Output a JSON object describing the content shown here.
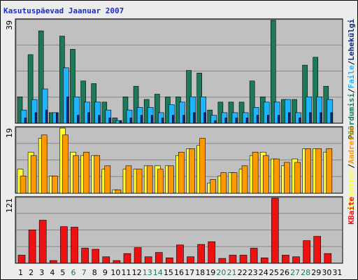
{
  "title": "Kasutuspäevad Jaanuar 2007",
  "colors": {
    "hits": "#1b7a5a",
    "files": "#1eb4ff",
    "pages": "#0b2a7a",
    "visits": "#ffff33",
    "sites": "#ff9900",
    "kbytes": "#ee1111",
    "weekend": "#1b7a5a",
    "weekday": "#000000",
    "plot_bg": "#c0c0c0"
  },
  "chart_data": [
    {
      "type": "bar",
      "ylabel_max": "39",
      "ylim": [
        0,
        39
      ],
      "legend": [
        {
          "key": "hits",
          "label": "Pöördumisi"
        },
        {
          "key": "sep1",
          "label": "/"
        },
        {
          "key": "files",
          "label": "Faile"
        },
        {
          "key": "sep2",
          "label": "/"
        },
        {
          "key": "pages",
          "label": "Lehekülgi"
        }
      ],
      "series": [
        {
          "name": "Pöördumisi",
          "values": [
            10,
            26,
            35,
            4,
            33,
            28,
            16,
            15,
            8,
            2,
            10,
            14,
            9,
            11,
            10,
            10,
            20,
            19,
            5,
            8,
            8,
            8,
            16,
            10,
            39,
            9,
            9,
            22,
            25,
            14,
            0
          ]
        },
        {
          "name": "Faile",
          "values": [
            5,
            9,
            13,
            4,
            21,
            10,
            8,
            8,
            5,
            1,
            5,
            6,
            6,
            4,
            7,
            8,
            10,
            10,
            3,
            4,
            4,
            4,
            6,
            8,
            8,
            9,
            4,
            10,
            10,
            9,
            0
          ]
        },
        {
          "name": "Lehekülgi",
          "values": [
            2,
            4,
            5,
            4,
            10,
            3,
            4,
            3,
            2,
            1,
            2,
            3,
            3,
            2,
            3,
            3,
            4,
            4,
            1,
            2,
            2,
            2,
            3,
            3,
            3,
            4,
            2,
            4,
            4,
            4,
            0
          ]
        }
      ]
    },
    {
      "type": "bar",
      "ylabel_max": "19",
      "ylim": [
        0,
        19
      ],
      "legend": [
        {
          "key": "visits",
          "label": "Külastusi"
        },
        {
          "key": "sep3",
          "label": "/"
        },
        {
          "key": "sites",
          "label": "Aadresse"
        }
      ],
      "series": [
        {
          "name": "Külastusi",
          "values": [
            7,
            12,
            16,
            5,
            19,
            12,
            11,
            11,
            7,
            1,
            7,
            7,
            8,
            8,
            8,
            11,
            13,
            14,
            3,
            5,
            6,
            7,
            11,
            12,
            10,
            8,
            10,
            13,
            13,
            12,
            0
          ]
        },
        {
          "name": "Aadresse",
          "values": [
            5,
            11,
            17,
            5,
            17,
            11,
            12,
            11,
            8,
            1,
            8,
            7,
            8,
            7,
            8,
            12,
            13,
            16,
            4,
            6,
            6,
            8,
            12,
            11,
            10,
            9,
            9,
            13,
            13,
            13,
            0
          ]
        }
      ]
    },
    {
      "type": "bar",
      "ylabel_max": "121",
      "ylim": [
        0,
        121
      ],
      "legend": [
        {
          "key": "kbytes",
          "label": "KBaite"
        }
      ],
      "series": [
        {
          "name": "KBaite",
          "values": [
            15,
            62,
            80,
            5,
            68,
            67,
            28,
            26,
            12,
            5,
            18,
            29,
            12,
            20,
            10,
            34,
            12,
            35,
            40,
            9,
            15,
            15,
            28,
            10,
            121,
            15,
            12,
            42,
            50,
            18,
            0
          ]
        }
      ]
    }
  ],
  "x_categories": [
    "1",
    "2",
    "3",
    "4",
    "5",
    "6",
    "7",
    "8",
    "9",
    "10",
    "11",
    "12",
    "13",
    "14",
    "15",
    "16",
    "17",
    "18",
    "19",
    "20",
    "21",
    "22",
    "23",
    "24",
    "25",
    "26",
    "27",
    "28",
    "29",
    "30",
    "31"
  ],
  "weekend_days": [
    "6",
    "7",
    "13",
    "14",
    "20",
    "21",
    "27",
    "28"
  ]
}
